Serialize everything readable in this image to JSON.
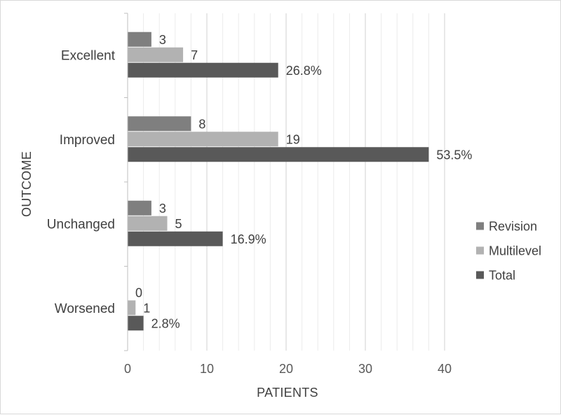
{
  "chart_data": {
    "type": "bar",
    "orientation": "horizontal",
    "categories": [
      "Excellent",
      "Improved",
      "Unchanged",
      "Worsened"
    ],
    "series": [
      {
        "name": "Revision",
        "color": "#7f7f7f",
        "values": [
          3,
          8,
          3,
          0
        ],
        "labels": [
          "3",
          "8",
          "3",
          "0"
        ]
      },
      {
        "name": "Multilevel",
        "color": "#b2b2b2",
        "values": [
          7,
          19,
          5,
          1
        ],
        "labels": [
          "7",
          "19",
          "5",
          "1"
        ]
      },
      {
        "name": "Total",
        "color": "#595959",
        "values": [
          19,
          38,
          12,
          2
        ],
        "labels": [
          "26.8%",
          "53.5%",
          "16.9%",
          "2.8%"
        ]
      }
    ],
    "xlabel": "PATIENTS",
    "ylabel": "OUTCOME",
    "xlim": [
      0,
      40
    ],
    "xticks": [
      0,
      10,
      20,
      30,
      40
    ],
    "minor_grid_step": 2,
    "grid": true,
    "legend_position": "right"
  }
}
